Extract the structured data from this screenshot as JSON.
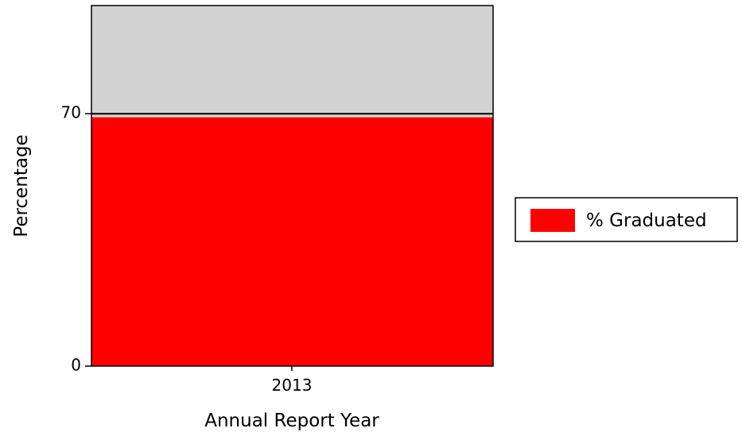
{
  "chart_data": {
    "type": "bar",
    "categories": [
      "2013"
    ],
    "series": [
      {
        "name": "% Graduated",
        "values": [
          69
        ],
        "color": "#ff0000"
      }
    ],
    "target_line": 70,
    "ylim": [
      0,
      100
    ],
    "yticks": [
      "0",
      "70"
    ],
    "xlabel": "Annual Report Year",
    "ylabel": "Percentage",
    "title": "",
    "background_color": "#d3d3d3",
    "legend_position": "right",
    "grid": false
  }
}
